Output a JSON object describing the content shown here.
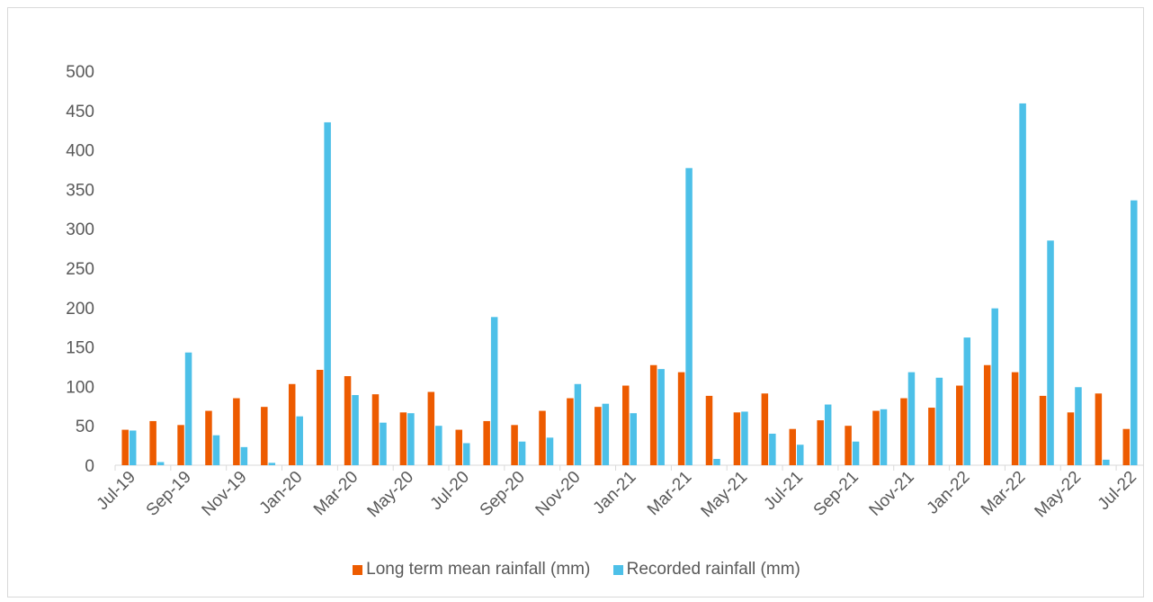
{
  "chart_data": {
    "type": "bar",
    "title": "",
    "xlabel": "",
    "ylabel": "",
    "ylim": [
      0,
      500
    ],
    "yticks": [
      0,
      50,
      100,
      150,
      200,
      250,
      300,
      350,
      400,
      450,
      500
    ],
    "grid": false,
    "legend_position": "bottom",
    "categories": [
      "Jul-19",
      "Aug-19",
      "Sep-19",
      "Oct-19",
      "Nov-19",
      "Dec-19",
      "Jan-20",
      "Feb-20",
      "Mar-20",
      "Apr-20",
      "May-20",
      "Jun-20",
      "Jul-20",
      "Aug-20",
      "Sep-20",
      "Oct-20",
      "Nov-20",
      "Dec-20",
      "Jan-21",
      "Feb-21",
      "Mar-21",
      "Apr-21",
      "May-21",
      "Jun-21",
      "Jul-21",
      "Aug-21",
      "Sep-21",
      "Oct-21",
      "Nov-21",
      "Dec-21",
      "Jan-22",
      "Feb-22",
      "Mar-22",
      "Apr-22",
      "May-22",
      "Jun-22",
      "Jul-22"
    ],
    "xtick_labels": [
      "Jul-19",
      "Sep-19",
      "Nov-19",
      "Jan-20",
      "Mar-20",
      "May-20",
      "Jul-20",
      "Sep-20",
      "Nov-20",
      "Jan-21",
      "Mar-21",
      "May-21",
      "Jul-21",
      "Sep-21",
      "Nov-21",
      "Jan-22",
      "Mar-22",
      "May-22",
      "Jul-22"
    ],
    "series": [
      {
        "name": "Long term mean rainfall (mm)",
        "color": "#ED5B00",
        "values": [
          45,
          56,
          51,
          69,
          85,
          74,
          103,
          121,
          113,
          90,
          67,
          93,
          45,
          56,
          51,
          69,
          85,
          74,
          101,
          127,
          118,
          88,
          67,
          91,
          46,
          57,
          50,
          69,
          85,
          73,
          101,
          127,
          118,
          88,
          67,
          91,
          46
        ]
      },
      {
        "name": "Recorded rainfall (mm)",
        "color": "#4DC0E8",
        "values": [
          44,
          4,
          143,
          38,
          23,
          3,
          62,
          435,
          89,
          54,
          66,
          50,
          28,
          188,
          30,
          35,
          103,
          78,
          66,
          122,
          377,
          8,
          68,
          40,
          26,
          77,
          30,
          71,
          118,
          111,
          162,
          199,
          459,
          285,
          99,
          7,
          336
        ]
      }
    ]
  }
}
